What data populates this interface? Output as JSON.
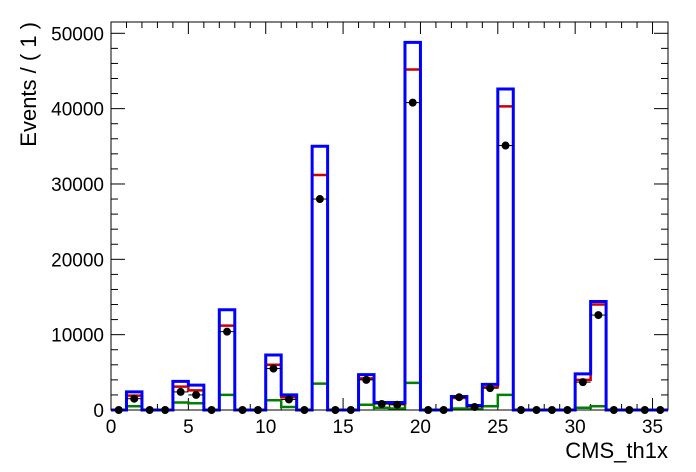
{
  "chart_data": {
    "type": "step-histogram",
    "xlabel": "CMS_th1x",
    "ylabel": "Events / ( 1 )",
    "xlim": [
      0,
      36
    ],
    "ylim": [
      0,
      51500
    ],
    "x_ticks": [
      0,
      5,
      10,
      15,
      20,
      25,
      30,
      35
    ],
    "x_tick_labels": [
      "0",
      "5",
      "10",
      "15",
      "20",
      "25",
      "30",
      "35"
    ],
    "y_ticks": [
      0,
      10000,
      20000,
      30000,
      40000,
      50000
    ],
    "y_tick_labels": [
      "0",
      "10000",
      "20000",
      "30000",
      "40000",
      "50000"
    ],
    "bin_edges": [
      0,
      1,
      2,
      3,
      4,
      5,
      6,
      7,
      8,
      9,
      10,
      11,
      12,
      13,
      14,
      15,
      16,
      17,
      18,
      19,
      20,
      21,
      22,
      23,
      24,
      25,
      26,
      27,
      28,
      29,
      30,
      31,
      32,
      33,
      34,
      35,
      36
    ],
    "series": [
      {
        "role": "total",
        "color": "#0000ff",
        "values": [
          0,
          2400,
          0,
          0,
          3800,
          3300,
          0,
          13300,
          0,
          0,
          7300,
          2000,
          0,
          35000,
          0,
          0,
          4700,
          1000,
          1000,
          48800,
          0,
          0,
          1800,
          600,
          3400,
          42600,
          0,
          0,
          0,
          0,
          4800,
          14400,
          0,
          0,
          0,
          0
        ]
      },
      {
        "role": "component-red",
        "color": "#cc0000",
        "values": [
          0,
          1900,
          0,
          0,
          3100,
          2600,
          0,
          11200,
          0,
          0,
          6000,
          1700,
          0,
          31200,
          0,
          0,
          4200,
          900,
          800,
          45200,
          0,
          0,
          1600,
          500,
          3000,
          40300,
          0,
          0,
          0,
          0,
          4000,
          14000,
          0,
          0,
          0,
          0
        ]
      },
      {
        "role": "component-green",
        "color": "#008000",
        "values": [
          0,
          500,
          0,
          0,
          1000,
          900,
          0,
          2000,
          0,
          0,
          1300,
          400,
          0,
          3500,
          0,
          0,
          700,
          300,
          200,
          3600,
          0,
          0,
          200,
          100,
          500,
          2000,
          0,
          0,
          0,
          0,
          300,
          500,
          0,
          0,
          0,
          0
        ]
      }
    ],
    "points": {
      "color": "#000000",
      "x": [
        0.5,
        1.5,
        2.5,
        3.5,
        4.5,
        5.5,
        6.5,
        7.5,
        8.5,
        9.5,
        10.5,
        11.5,
        12.5,
        13.5,
        14.5,
        15.5,
        16.5,
        17.5,
        18.5,
        19.5,
        20.5,
        21.5,
        22.5,
        23.5,
        24.5,
        25.5,
        26.5,
        27.5,
        28.5,
        29.5,
        30.5,
        31.5,
        32.5,
        33.5,
        34.5,
        35.5
      ],
      "y": [
        0,
        1500,
        0,
        0,
        2400,
        2000,
        0,
        10400,
        0,
        0,
        5500,
        1400,
        0,
        28000,
        0,
        0,
        4000,
        800,
        700,
        40800,
        0,
        0,
        1700,
        400,
        2900,
        35100,
        0,
        0,
        0,
        0,
        3700,
        12600,
        0,
        0,
        0,
        0
      ]
    }
  }
}
